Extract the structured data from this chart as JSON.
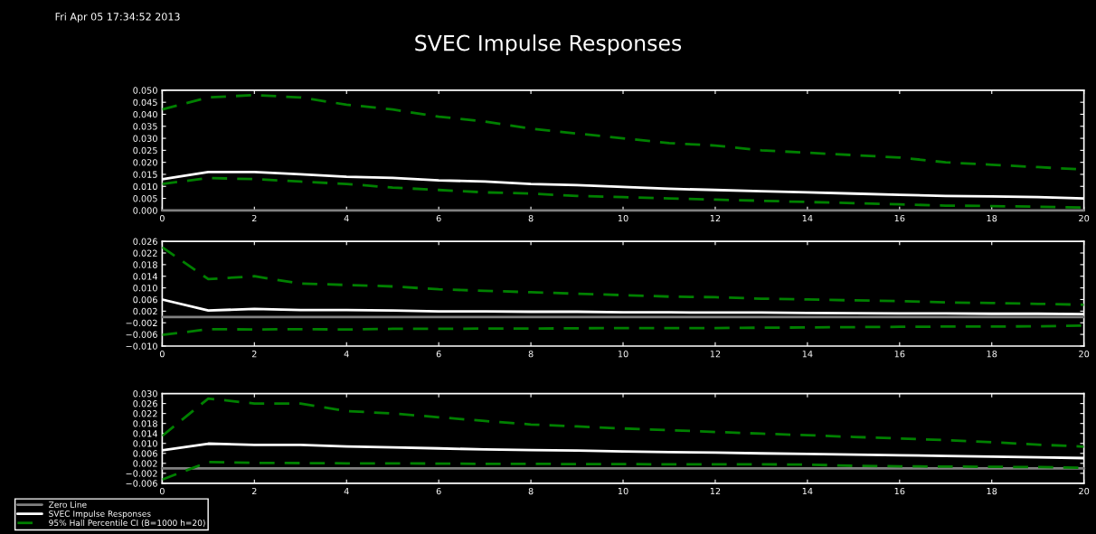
{
  "chart_data": [
    {
      "type": "line",
      "title": "SVEC Impulse Responses",
      "annotations": [
        "Fri Apr 05 17:34:52 2013"
      ],
      "x": [
        0,
        1,
        2,
        3,
        4,
        5,
        6,
        7,
        8,
        9,
        10,
        11,
        12,
        13,
        14,
        15,
        16,
        17,
        18,
        19,
        20
      ],
      "series": [
        {
          "color": "#ffffff",
          "line_style": "solid",
          "values": [
            0.013,
            0.016,
            0.016,
            0.015,
            0.014,
            0.0135,
            0.0125,
            0.012,
            0.011,
            0.0105,
            0.0098,
            0.009,
            0.0085,
            0.008,
            0.0075,
            0.007,
            0.0065,
            0.006,
            0.0058,
            0.0055,
            0.005
          ]
        },
        {
          "color": "#008000",
          "line_style": "dashed",
          "values": [
            0.042,
            0.047,
            0.048,
            0.047,
            0.044,
            0.042,
            0.039,
            0.037,
            0.034,
            0.032,
            0.03,
            0.028,
            0.027,
            0.025,
            0.024,
            0.023,
            0.022,
            0.02,
            0.019,
            0.018,
            0.017
          ]
        },
        {
          "color": "#008000",
          "line_style": "dashed",
          "values": [
            0.011,
            0.0135,
            0.013,
            0.012,
            0.011,
            0.0095,
            0.0085,
            0.0075,
            0.007,
            0.006,
            0.0055,
            0.005,
            0.0045,
            0.004,
            0.0035,
            0.003,
            0.0025,
            0.002,
            0.0018,
            0.0015,
            0.0012
          ]
        }
      ],
      "ref_lines": [
        {
          "axis": "y",
          "value": 0,
          "color": "#808080"
        }
      ],
      "xlim": [
        0,
        20
      ],
      "xticks": [
        0,
        2,
        4,
        6,
        8,
        10,
        12,
        14,
        16,
        18,
        20
      ],
      "ylim": [
        0,
        0.05
      ],
      "yticks": [
        {
          "value": 0,
          "label": "0.000"
        },
        {
          "value": 0.005,
          "label": "0.005"
        },
        {
          "value": 0.01,
          "label": "0.010"
        },
        {
          "value": 0.015,
          "label": "0.015"
        },
        {
          "value": 0.02,
          "label": "0.020"
        },
        {
          "value": 0.025,
          "label": "0.025"
        },
        {
          "value": 0.03,
          "label": "0.030"
        },
        {
          "value": 0.035,
          "label": "0.035"
        },
        {
          "value": 0.04,
          "label": "0.040"
        },
        {
          "value": 0.045,
          "label": "0.045"
        },
        {
          "value": 0.05,
          "label": "0.050"
        }
      ]
    },
    {
      "type": "line",
      "x": [
        0,
        1,
        2,
        3,
        4,
        5,
        6,
        7,
        8,
        9,
        10,
        11,
        12,
        13,
        14,
        15,
        16,
        17,
        18,
        19,
        20
      ],
      "series": [
        {
          "color": "#ffffff",
          "line_style": "solid",
          "values": [
            0.006,
            0.0022,
            0.0028,
            0.0024,
            0.0024,
            0.0022,
            0.0019,
            0.0019,
            0.0018,
            0.0018,
            0.0016,
            0.0016,
            0.0015,
            0.0015,
            0.0014,
            0.0013,
            0.0012,
            0.0012,
            0.0011,
            0.0011,
            0.001
          ]
        },
        {
          "color": "#008000",
          "line_style": "dashed",
          "values": [
            0.024,
            0.013,
            0.014,
            0.0115,
            0.011,
            0.0105,
            0.0095,
            0.009,
            0.0085,
            0.008,
            0.0075,
            0.007,
            0.0068,
            0.0063,
            0.006,
            0.0057,
            0.0055,
            0.005,
            0.0048,
            0.0045,
            0.0042
          ]
        },
        {
          "color": "#008000",
          "line_style": "dashed",
          "values": [
            -0.0062,
            -0.0042,
            -0.0043,
            -0.0042,
            -0.0043,
            -0.0041,
            -0.0041,
            -0.004,
            -0.004,
            -0.0039,
            -0.0038,
            -0.0038,
            -0.0038,
            -0.0037,
            -0.0036,
            -0.0035,
            -0.0034,
            -0.0033,
            -0.0033,
            -0.0032,
            -0.003
          ]
        }
      ],
      "ref_lines": [
        {
          "axis": "y",
          "value": 0,
          "color": "#808080"
        }
      ],
      "xlim": [
        0,
        20
      ],
      "xticks": [
        0,
        2,
        4,
        6,
        8,
        10,
        12,
        14,
        16,
        18,
        20
      ],
      "ylim": [
        -0.01,
        0.026
      ],
      "yticks": [
        {
          "value": -0.01,
          "label": "−0.010"
        },
        {
          "value": -0.006,
          "label": "−0.006"
        },
        {
          "value": -0.002,
          "label": "−0.002"
        },
        {
          "value": 0.002,
          "label": "0.002"
        },
        {
          "value": 0.006,
          "label": "0.006"
        },
        {
          "value": 0.01,
          "label": "0.010"
        },
        {
          "value": 0.014,
          "label": "0.014"
        },
        {
          "value": 0.018,
          "label": "0.018"
        },
        {
          "value": 0.022,
          "label": "0.022"
        },
        {
          "value": 0.026,
          "label": "0.026"
        }
      ]
    },
    {
      "type": "line",
      "legend": "bottom left",
      "x": [
        0,
        1,
        2,
        3,
        4,
        5,
        6,
        7,
        8,
        9,
        10,
        11,
        12,
        13,
        14,
        15,
        16,
        17,
        18,
        19,
        20
      ],
      "series": [
        {
          "name": "SVEC Impulse Responses",
          "color": "#ffffff",
          "line_style": "solid",
          "values": [
            0.0072,
            0.0099,
            0.0094,
            0.0094,
            0.0088,
            0.0084,
            0.008,
            0.0076,
            0.0073,
            0.0071,
            0.0068,
            0.0065,
            0.0063,
            0.006,
            0.0058,
            0.0055,
            0.0052,
            0.005,
            0.0047,
            0.0044,
            0.0041
          ]
        },
        {
          "name": "95% Hall Percentile CI (B=1000 h=20)",
          "color": "#008000",
          "line_style": "dashed",
          "values": [
            0.013,
            0.028,
            0.026,
            0.026,
            0.023,
            0.022,
            0.0205,
            0.019,
            0.0176,
            0.0168,
            0.016,
            0.0153,
            0.0146,
            0.0139,
            0.0133,
            0.0126,
            0.012,
            0.0113,
            0.0105,
            0.0095,
            0.0087
          ]
        },
        {
          "color": "#008000",
          "line_style": "dashed",
          "values": [
            -0.0045,
            0.0025,
            0.0022,
            0.0021,
            0.002,
            0.002,
            0.0019,
            0.0018,
            0.0018,
            0.0017,
            0.0017,
            0.0016,
            0.0016,
            0.0016,
            0.0015,
            0.001,
            0.0008,
            0.0007,
            0.0006,
            0.0005,
            0.0002
          ]
        }
      ],
      "ref_lines": [
        {
          "axis": "y",
          "value": 0,
          "label": "Zero Line",
          "color": "#808080"
        }
      ],
      "xlim": [
        0,
        20
      ],
      "xticks": [
        0,
        2,
        4,
        6,
        8,
        10,
        12,
        14,
        16,
        18,
        20
      ],
      "ylim": [
        -0.006,
        0.03
      ],
      "yticks": [
        {
          "value": -0.006,
          "label": "−0.006"
        },
        {
          "value": -0.002,
          "label": "−0.002"
        },
        {
          "value": 0.002,
          "label": "0.002"
        },
        {
          "value": 0.006,
          "label": "0.006"
        },
        {
          "value": 0.01,
          "label": "0.010"
        },
        {
          "value": 0.014,
          "label": "0.014"
        },
        {
          "value": 0.018,
          "label": "0.018"
        },
        {
          "value": 0.022,
          "label": "0.022"
        },
        {
          "value": 0.026,
          "label": "0.026"
        },
        {
          "value": 0.03,
          "label": "0.030"
        }
      ]
    }
  ]
}
